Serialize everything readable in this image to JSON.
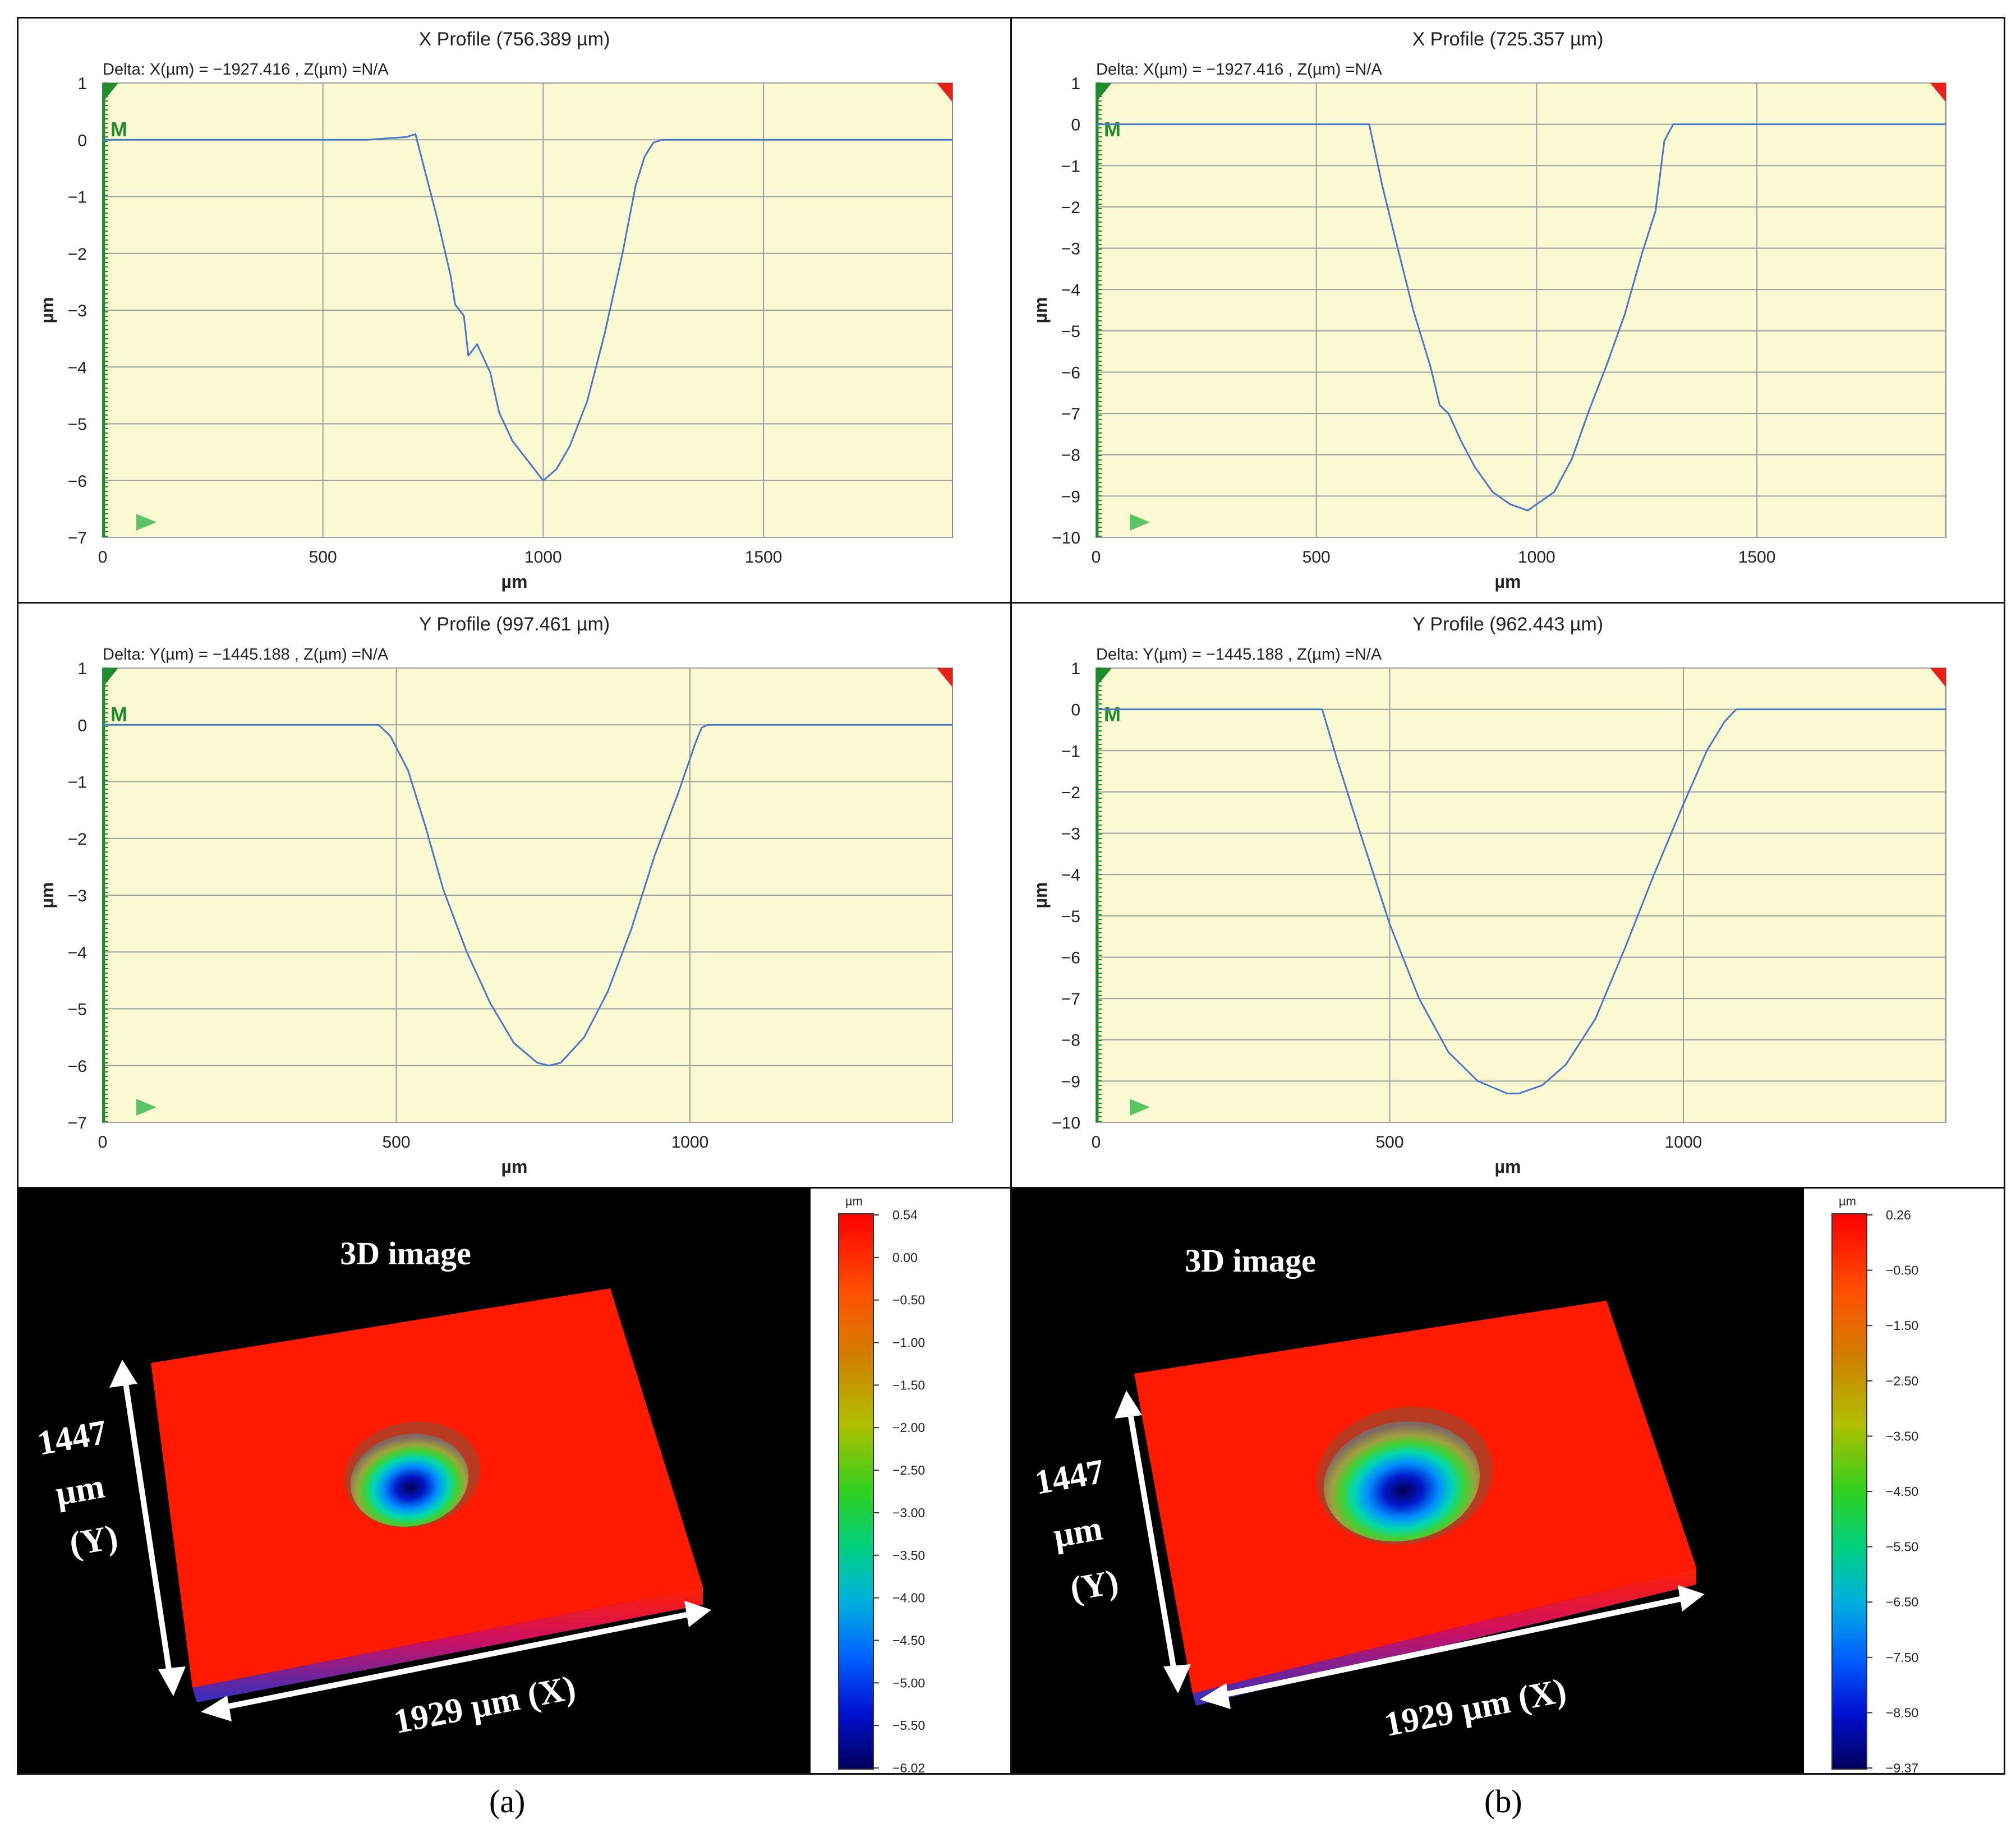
{
  "profiles": [
    {
      "id": "a-x",
      "title": "X Profile (756.389 µm)",
      "delta": "Delta:  X(µm) = −1927.416 ,  Z(µm) =N/A",
      "marker": "M",
      "ylabel": "µm",
      "xlabel": "µm",
      "xlim": [
        0,
        1929
      ],
      "ylim": [
        -7,
        1
      ],
      "xticks": [
        0,
        500,
        1000,
        1500
      ],
      "yticks": [
        1,
        0,
        -1,
        -2,
        -3,
        -4,
        -5,
        -6,
        -7
      ],
      "line_color": "#4a78c8"
    },
    {
      "id": "b-x",
      "title": "X Profile (725.357 µm)",
      "delta": "Delta:  X(µm) = −1927.416 ,  Z(µm) =N/A",
      "marker": "M",
      "ylabel": "µm",
      "xlabel": "µm",
      "xlim": [
        0,
        1929
      ],
      "ylim": [
        -10,
        1
      ],
      "xticks": [
        0,
        500,
        1000,
        1500
      ],
      "yticks": [
        1,
        0,
        -1,
        -2,
        -3,
        -4,
        -5,
        -6,
        -7,
        -8,
        -9,
        -10
      ],
      "line_color": "#4a78c8"
    },
    {
      "id": "a-y",
      "title": "Y Profile (997.461 µm)",
      "delta": "Delta:  Y(µm) = −1445.188 ,  Z(µm) =N/A",
      "marker": "M",
      "ylabel": "µm",
      "xlabel": "µm",
      "xlim": [
        0,
        1447
      ],
      "ylim": [
        -7,
        1
      ],
      "xticks": [
        0,
        500,
        1000
      ],
      "yticks": [
        1,
        0,
        -1,
        -2,
        -3,
        -4,
        -5,
        -6,
        -7
      ],
      "line_color": "#4a78c8"
    },
    {
      "id": "b-y",
      "title": "Y Profile (962.443 µm)",
      "delta": "Delta:  Y(µm) = −1445.188 ,  Z(µm) =N/A",
      "marker": "M",
      "ylabel": "µm",
      "xlabel": "µm",
      "xlim": [
        0,
        1447
      ],
      "ylim": [
        -10,
        1
      ],
      "xticks": [
        0,
        500,
        1000
      ],
      "yticks": [
        1,
        0,
        -1,
        -2,
        -3,
        -4,
        -5,
        -6,
        -7,
        -8,
        -9,
        -10
      ],
      "line_color": "#4a78c8"
    }
  ],
  "chart_data": [
    {
      "type": "line",
      "title": "X Profile (756.389 µm)",
      "xlabel": "µm",
      "ylabel": "µm",
      "xlim": [
        0,
        1929
      ],
      "ylim": [
        -7,
        1
      ],
      "grid": true,
      "x": [
        0,
        100,
        200,
        300,
        400,
        500,
        600,
        690,
        710,
        730,
        760,
        790,
        800,
        820,
        830,
        850,
        880,
        900,
        930,
        960,
        990,
        1000,
        1030,
        1060,
        1100,
        1140,
        1180,
        1210,
        1230,
        1250,
        1270,
        1400,
        1600,
        1800,
        1929
      ],
      "y": [
        0,
        0,
        0,
        0,
        0,
        0,
        0,
        0.05,
        0.1,
        -0.5,
        -1.4,
        -2.4,
        -2.9,
        -3.1,
        -3.8,
        -3.6,
        -4.1,
        -4.8,
        -5.3,
        -5.6,
        -5.9,
        -6.0,
        -5.8,
        -5.4,
        -4.6,
        -3.4,
        -2.0,
        -0.8,
        -0.3,
        -0.05,
        0,
        0,
        0,
        0,
        0
      ]
    },
    {
      "type": "line",
      "title": "X Profile (725.357 µm)",
      "xlabel": "µm",
      "ylabel": "µm",
      "xlim": [
        0,
        1929
      ],
      "ylim": [
        -10,
        1
      ],
      "grid": true,
      "x": [
        0,
        100,
        300,
        500,
        600,
        620,
        650,
        680,
        720,
        760,
        780,
        800,
        830,
        860,
        900,
        940,
        980,
        1000,
        1040,
        1080,
        1120,
        1160,
        1200,
        1240,
        1270,
        1290,
        1310,
        1400,
        1600,
        1800,
        1929
      ],
      "y": [
        0,
        0,
        0,
        0,
        0,
        0,
        -1.5,
        -2.8,
        -4.5,
        -5.9,
        -6.8,
        -7.0,
        -7.7,
        -8.3,
        -8.9,
        -9.2,
        -9.35,
        -9.2,
        -8.9,
        -8.1,
        -6.9,
        -5.8,
        -4.6,
        -3.1,
        -2.1,
        -0.4,
        0,
        0,
        0,
        0,
        0
      ]
    },
    {
      "type": "line",
      "title": "Y Profile (997.461 µm)",
      "xlabel": "µm",
      "ylabel": "µm",
      "xlim": [
        0,
        1447
      ],
      "ylim": [
        -7,
        1
      ],
      "grid": true,
      "x": [
        0,
        100,
        200,
        300,
        400,
        470,
        490,
        520,
        550,
        580,
        620,
        660,
        700,
        740,
        760,
        780,
        820,
        860,
        900,
        940,
        980,
        1010,
        1020,
        1030,
        1100,
        1200,
        1300,
        1447
      ],
      "y": [
        0,
        0,
        0,
        0,
        0,
        0,
        -0.2,
        -0.8,
        -1.8,
        -2.9,
        -4.0,
        -4.9,
        -5.6,
        -5.95,
        -6.0,
        -5.95,
        -5.5,
        -4.7,
        -3.6,
        -2.3,
        -1.2,
        -0.3,
        -0.05,
        0,
        0,
        0,
        0,
        0
      ]
    },
    {
      "type": "line",
      "title": "Y Profile (962.443 µm)",
      "xlabel": "µm",
      "ylabel": "µm",
      "xlim": [
        0,
        1447
      ],
      "ylim": [
        -10,
        1
      ],
      "grid": true,
      "x": [
        0,
        100,
        200,
        300,
        370,
        385,
        410,
        450,
        500,
        550,
        600,
        650,
        700,
        720,
        760,
        800,
        850,
        900,
        950,
        1000,
        1040,
        1070,
        1090,
        1100,
        1200,
        1300,
        1447
      ],
      "y": [
        0,
        0,
        0,
        0,
        0,
        0,
        -1.2,
        -3.0,
        -5.2,
        -7.0,
        -8.3,
        -9.0,
        -9.3,
        -9.3,
        -9.1,
        -8.6,
        -7.5,
        -5.8,
        -4.0,
        -2.3,
        -1.0,
        -0.3,
        0,
        0,
        0,
        0,
        0
      ]
    },
    {
      "type": "heatmap",
      "title": "3D image",
      "colorbar_unit": "µm",
      "colorbar_ticks": [
        "0.54",
        "0.00",
        "−0.50",
        "−1.00",
        "−1.50",
        "−2.00",
        "−2.50",
        "−3.00",
        "−3.50",
        "−4.00",
        "−4.50",
        "−5.00",
        "−5.50",
        "−6.02"
      ],
      "zlim": [
        -6.02,
        0.54
      ]
    },
    {
      "type": "heatmap",
      "title": "3D image",
      "colorbar_unit": "µm",
      "colorbar_ticks": [
        "0.26",
        "−0.50",
        "−1.50",
        "−2.50",
        "−3.50",
        "−4.50",
        "−5.50",
        "−6.50",
        "−7.50",
        "−8.50",
        "−9.37"
      ],
      "zlim": [
        -9.37,
        0.26
      ]
    }
  ],
  "surfaces": [
    {
      "id": "a",
      "title": "3D image",
      "y_label": [
        "1447",
        "µm",
        "(Y)"
      ],
      "x_label": "1929 µm (X)",
      "colorbar_unit": "µm",
      "colorbar_ticks": [
        "0.54",
        "0.00",
        "−0.50",
        "−1.00",
        "−1.50",
        "−2.00",
        "−2.50",
        "−3.00",
        "−3.50",
        "−4.00",
        "−4.50",
        "−5.00",
        "−5.50",
        "−6.02"
      ]
    },
    {
      "id": "b",
      "title": "3D image",
      "y_label": [
        "1447",
        "µm",
        "(Y)"
      ],
      "x_label": "1929 µm (X)",
      "colorbar_unit": "µm",
      "colorbar_ticks": [
        "0.26",
        "−0.50",
        "−1.50",
        "−2.50",
        "−3.50",
        "−4.50",
        "−5.50",
        "−6.50",
        "−7.50",
        "−8.50",
        "−9.37"
      ]
    }
  ],
  "captions": [
    "(a)",
    "(b)"
  ],
  "colors": {
    "plot_bg": "#fbf9d2",
    "grid": "#9aa0a0",
    "axis_green": "#1e8c2a",
    "marker_red": "#e8201a",
    "surface_red": "#ff1a00"
  }
}
